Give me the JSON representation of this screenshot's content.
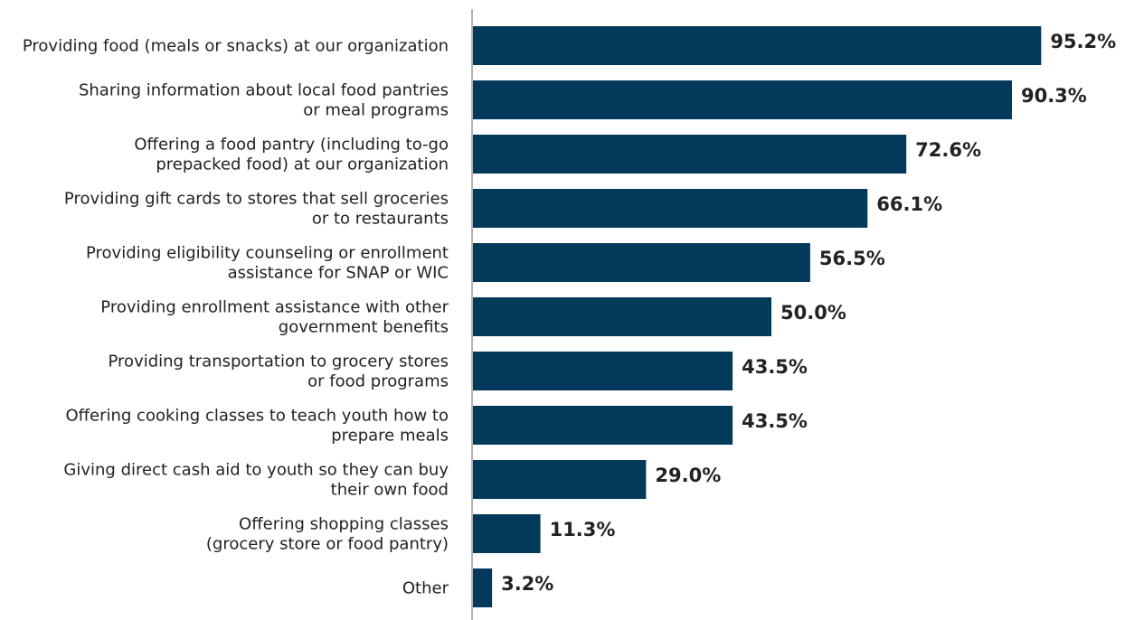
{
  "chart_data": {
    "type": "bar",
    "orientation": "horizontal",
    "categories": [
      [
        "Providing food (meals or snacks) at our organization"
      ],
      [
        "Sharing information about local food pantries",
        "or meal programs"
      ],
      [
        "Offering a food pantry (including to-go",
        "prepacked food) at our organization"
      ],
      [
        "Providing gift cards to stores that sell groceries",
        "or to restaurants"
      ],
      [
        "Providing eligibility counseling or enrollment",
        "assistance for SNAP or WIC"
      ],
      [
        "Providing enrollment assistance with other",
        "government benefits"
      ],
      [
        "Providing transportation to grocery stores",
        "or food programs"
      ],
      [
        "Offering cooking classes to teach youth how to",
        "prepare meals"
      ],
      [
        "Giving direct cash aid to youth so they can buy",
        "their own food"
      ],
      [
        "Offering shopping classes",
        "(grocery store or food pantry)"
      ],
      [
        "Other"
      ]
    ],
    "values": [
      95.2,
      90.3,
      72.6,
      66.1,
      56.5,
      50.0,
      43.5,
      43.5,
      29.0,
      11.3,
      3.2
    ],
    "value_labels": [
      "95.2%",
      "90.3%",
      "72.6%",
      "66.1%",
      "56.5%",
      "50.0%",
      "43.5%",
      "43.5%",
      "29.0%",
      "11.3%",
      "3.2%"
    ],
    "xlim": [
      0,
      100
    ],
    "grid": false,
    "legend": "none",
    "colors": {
      "bar": "#033a5b",
      "axis": "#666666",
      "text": "#222222"
    }
  }
}
